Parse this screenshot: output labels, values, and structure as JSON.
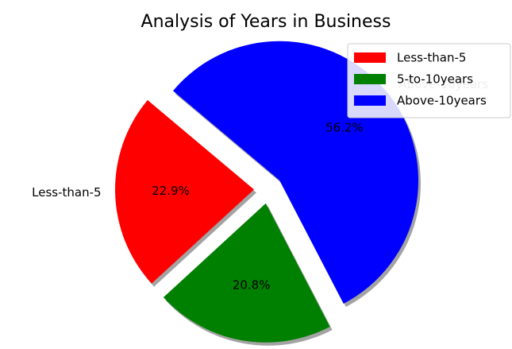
{
  "chart_data": {
    "type": "pie",
    "title": "Analysis of Years in Business",
    "categories": [
      "Less-than-5",
      "5-to-10years",
      "Above-10years"
    ],
    "values": [
      22.9,
      20.8,
      56.2
    ],
    "value_labels": [
      "22.9%",
      "20.8%",
      "56.2%"
    ],
    "colors": [
      "#ff0000",
      "#008000",
      "#0000ff"
    ],
    "legend": "upper right"
  }
}
